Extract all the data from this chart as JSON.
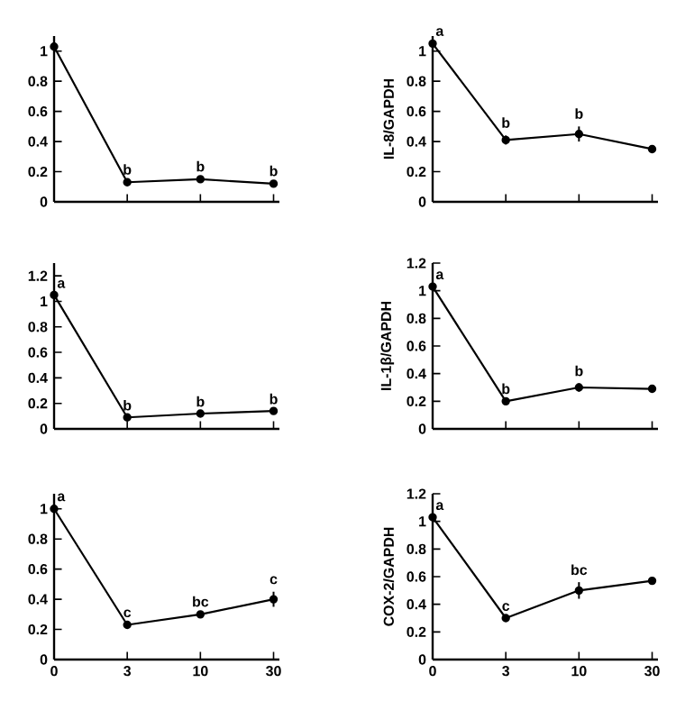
{
  "chart_data": [
    {
      "type": "line",
      "categories": [
        null,
        null,
        null,
        null
      ],
      "values": [
        1.03,
        0.13,
        0.15,
        0.12
      ],
      "value_labels": [
        null,
        "b",
        "b",
        "b"
      ],
      "color": "#000000",
      "ylim": [
        0,
        1.1
      ],
      "yticks": [
        0,
        0.2,
        0.4,
        0.6,
        0.8,
        1
      ],
      "tick_labels": "y",
      "marker": "circle",
      "line_style": "solid",
      "grid": false
    },
    {
      "type": "line",
      "ylabel": "IL-8/GAPDH",
      "categories": [
        null,
        null,
        null,
        null
      ],
      "values": [
        1.05,
        0.41,
        0.45,
        0.35
      ],
      "errors": [
        null,
        0.03,
        0.05,
        null
      ],
      "value_labels": [
        "a",
        "b",
        "b",
        null
      ],
      "color": "#000000",
      "ylim": [
        0,
        1.1
      ],
      "yticks": [
        0,
        0.2,
        0.4,
        0.6,
        0.8,
        1
      ],
      "tick_labels": "y",
      "marker": "circle",
      "line_style": "solid",
      "grid": false
    },
    {
      "type": "line",
      "categories": [
        null,
        null,
        null,
        null
      ],
      "values": [
        1.05,
        0.09,
        0.12,
        0.14
      ],
      "value_labels": [
        "a",
        "b",
        "b",
        "b"
      ],
      "color": "#000000",
      "ylim": [
        0,
        1.3
      ],
      "yticks": [
        0,
        0.2,
        0.4,
        0.6,
        0.8,
        1,
        1.2
      ],
      "tick_labels": "y",
      "marker": "circle",
      "line_style": "solid",
      "grid": false
    },
    {
      "type": "line",
      "ylabel": "IL-1β/GAPDH",
      "categories": [
        null,
        null,
        null,
        null
      ],
      "values": [
        1.03,
        0.2,
        0.3,
        0.29
      ],
      "errors": [
        null,
        null,
        0.03,
        null
      ],
      "value_labels": [
        "a",
        "b",
        "b",
        null
      ],
      "color": "#000000",
      "ylim": [
        0,
        1.2
      ],
      "yticks": [
        0,
        0.2,
        0.4,
        0.6,
        0.8,
        1,
        1.2
      ],
      "tick_labels": "y",
      "marker": "circle",
      "line_style": "solid",
      "grid": false
    },
    {
      "type": "line",
      "categories": [
        "0",
        "3",
        "10",
        "30"
      ],
      "values": [
        1.0,
        0.23,
        0.3,
        0.4
      ],
      "errors": [
        null,
        null,
        null,
        0.05
      ],
      "value_labels": [
        "a",
        "c",
        "bc",
        "c"
      ],
      "color": "#000000",
      "ylim": [
        0,
        1.1
      ],
      "yticks": [
        0,
        0.2,
        0.4,
        0.6,
        0.8,
        1
      ],
      "marker": "circle",
      "line_style": "solid",
      "grid": false
    },
    {
      "type": "line",
      "ylabel": "COX-2/GAPDH",
      "categories": [
        "0",
        "3",
        "10",
        "30"
      ],
      "values": [
        1.03,
        0.3,
        0.5,
        0.57
      ],
      "errors": [
        null,
        null,
        0.06,
        null
      ],
      "value_labels": [
        "a",
        "c",
        "bc",
        null
      ],
      "color": "#000000",
      "ylim": [
        0,
        1.2
      ],
      "yticks": [
        0,
        0.2,
        0.4,
        0.6,
        0.8,
        1,
        1.2
      ],
      "marker": "circle",
      "line_style": "solid",
      "grid": false
    }
  ]
}
